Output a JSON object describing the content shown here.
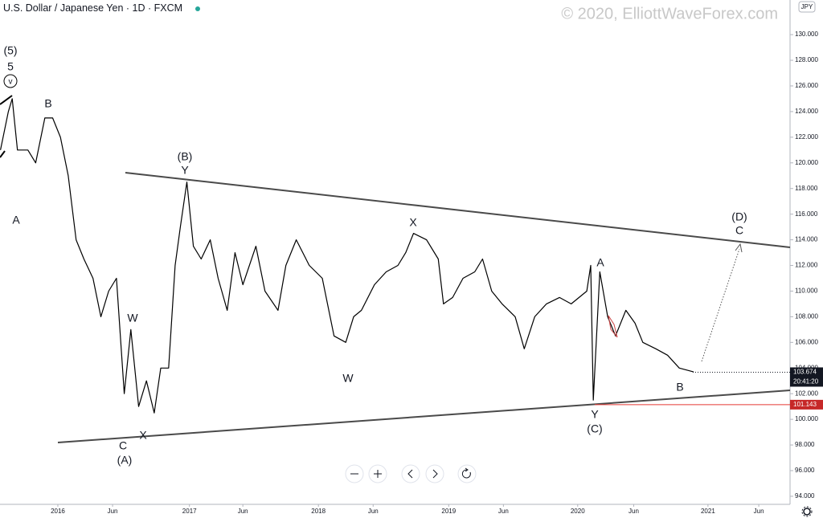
{
  "chart_data": {
    "type": "line",
    "title": "U.S. Dollar / Japanese Yen",
    "interval": "1D",
    "source": "FXCM",
    "watermark": "© 2020, ElliottWaveForex.com",
    "currency": "JPY",
    "color": "#000000",
    "x": [
      2015.56,
      2015.62,
      2015.65,
      2015.69,
      2015.77,
      2015.83,
      2015.9,
      2015.96,
      2016.02,
      2016.08,
      2016.14,
      2016.2,
      2016.27,
      2016.33,
      2016.39,
      2016.45,
      2016.51,
      2016.56,
      2016.62,
      2016.68,
      2016.74,
      2016.79,
      2016.85,
      2016.9,
      2016.94,
      2016.99,
      2017.04,
      2017.1,
      2017.17,
      2017.23,
      2017.3,
      2017.36,
      2017.42,
      2017.52,
      2017.59,
      2017.69,
      2017.75,
      2017.83,
      2017.93,
      2018.03,
      2018.12,
      2018.21,
      2018.27,
      2018.33,
      2018.43,
      2018.52,
      2018.61,
      2018.67,
      2018.73,
      2018.83,
      2018.92,
      2018.96,
      2019.03,
      2019.11,
      2019.2,
      2019.26,
      2019.33,
      2019.41,
      2019.51,
      2019.58,
      2019.66,
      2019.75,
      2019.85,
      2019.94,
      2020.06,
      2020.09,
      2020.11,
      2020.16,
      2020.22,
      2020.28,
      2020.36,
      2020.43,
      2020.49,
      2020.59,
      2020.68,
      2020.77,
      2020.88
    ],
    "values": [
      121,
      124,
      125,
      121,
      121,
      120,
      123.5,
      123.5,
      122,
      119,
      114,
      112.5,
      111,
      108,
      110,
      111,
      102,
      107,
      101,
      103,
      100.5,
      104,
      104,
      112,
      115,
      118.5,
      113.5,
      112.5,
      114,
      111,
      108.5,
      113,
      110.5,
      113.5,
      110,
      108.5,
      112,
      114,
      112,
      111,
      106.5,
      106,
      108,
      108.5,
      110.5,
      111.5,
      112,
      113,
      114.5,
      114,
      112.5,
      109,
      109.5,
      111,
      111.5,
      112.5,
      110,
      109,
      108,
      105.5,
      108,
      109,
      109.5,
      109,
      110,
      112,
      101.5,
      111.5,
      108,
      106.5,
      108.5,
      107.5,
      106,
      105.5,
      105,
      104,
      103.7
    ],
    "xlim": [
      2015.556,
      2021.62
    ],
    "ylim": [
      93.37,
      132.7
    ],
    "xticks": [
      {
        "value": 2016,
        "label": "2016"
      },
      {
        "value": 2016.42,
        "label": "Jun"
      },
      {
        "value": 2017.01,
        "label": "2017"
      },
      {
        "value": 2017.42,
        "label": "Jun"
      },
      {
        "value": 2018,
        "label": "2018"
      },
      {
        "value": 2018.42,
        "label": "Jun"
      },
      {
        "value": 2019,
        "label": "2019"
      },
      {
        "value": 2019.42,
        "label": "Jun"
      },
      {
        "value": 2019.99,
        "label": "2020"
      },
      {
        "value": 2020.42,
        "label": "Jun"
      },
      {
        "value": 2020.99,
        "label": "2021"
      },
      {
        "value": 2021.38,
        "label": "Jun"
      }
    ],
    "yticks": [
      {
        "value": 94,
        "label": "94.000"
      },
      {
        "value": 96,
        "label": "96.000"
      },
      {
        "value": 98,
        "label": "98.000"
      },
      {
        "value": 100,
        "label": "100.000"
      },
      {
        "value": 102,
        "label": "102.000"
      },
      {
        "value": 104,
        "label": "104.000"
      },
      {
        "value": 106,
        "label": "106.000"
      },
      {
        "value": 108,
        "label": "108.000"
      },
      {
        "value": 110,
        "label": "110.000"
      },
      {
        "value": 112,
        "label": "112.000"
      },
      {
        "value": 114,
        "label": "114.000"
      },
      {
        "value": 116,
        "label": "116.000"
      },
      {
        "value": 118,
        "label": "118.000"
      },
      {
        "value": 120,
        "label": "120.000"
      },
      {
        "value": 122,
        "label": "122.000"
      },
      {
        "value": 124,
        "label": "124.000"
      },
      {
        "value": 126,
        "label": "126.000"
      },
      {
        "value": 128,
        "label": "128.000"
      },
      {
        "value": 130,
        "label": "130.000"
      }
    ],
    "last_price": 103.674,
    "countdown": "20:41:20",
    "marked_level": 101.143,
    "annotations": [
      "(5)",
      "5",
      "v",
      "B",
      "A",
      "(B)",
      "Y",
      "W",
      "C",
      "X",
      "(A)",
      "W",
      "X",
      "A",
      "Y",
      "(C)",
      "B",
      "(D)",
      "C"
    ]
  }
}
